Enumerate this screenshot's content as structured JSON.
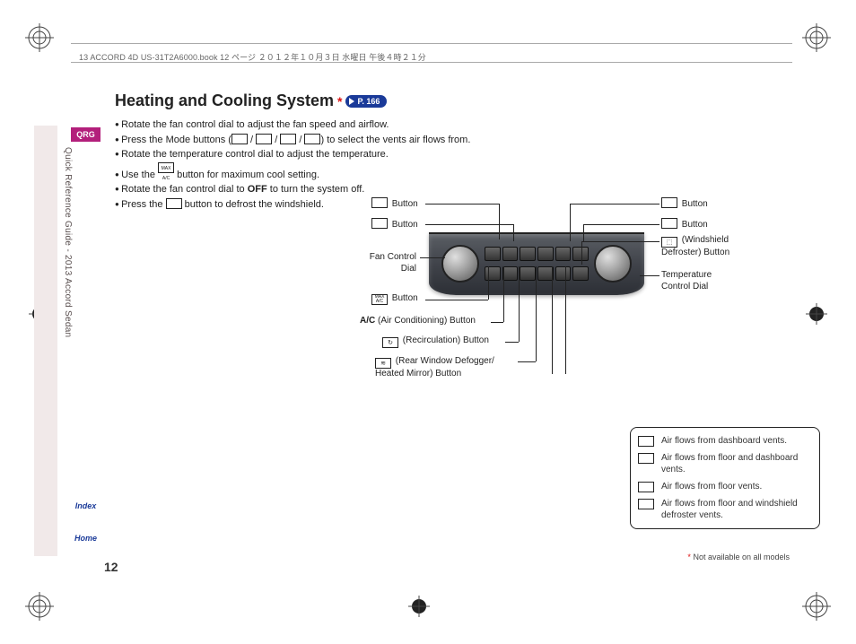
{
  "print_header": "13 ACCORD 4D US-31T2A6000.book  12 ページ  ２０１２年１０月３日  水曜日  午後４時２１分",
  "side_title": "Quick Reference Guide - 2013 Accord Sedan",
  "tabs": {
    "qrg": "QRG",
    "index": "Index",
    "home": "Home"
  },
  "page_number": "12",
  "footnote": {
    "star": "*",
    "text": " Not available on all models"
  },
  "title": {
    "text": "Heating and Cooling System",
    "star": "*",
    "page_ref": "P. 166"
  },
  "bullets": [
    {
      "pre": "Rotate the fan control dial to adjust the fan speed and airflow."
    },
    {
      "pre": "Press the Mode buttons (",
      "icons": 4,
      "post": ") to select the vents air flows from."
    },
    {
      "pre": "Rotate the temperature control dial to adjust the temperature."
    },
    {
      "pre": "Use the ",
      "icons": 1,
      "icon_label": "MAX A/C",
      "post": " button for maximum cool setting."
    },
    {
      "pre": "Rotate the fan control dial to ",
      "bold": "OFF",
      "post": " to turn the system off."
    },
    {
      "pre": "Press the ",
      "icons": 1,
      "post": " button to defrost the windshield."
    }
  ],
  "callouts": {
    "left_top1": "        Button",
    "left_top2": "        Button",
    "fan_dial": "Fan Control\nDial",
    "max_btn": "        Button",
    "ac_btn_bold": "A/C",
    "ac_btn_rest": " (Air Conditioning) Button",
    "recirc_btn": "        (Recirculation) Button",
    "rear_defog": "       (Rear Window Defogger/\nHeated Mirror) Button",
    "right_top1": "        Button",
    "right_top2": "        Button",
    "windshield": "      (Windshield\nDefroster) Button",
    "temp_dial": "Temperature\nControl Dial"
  },
  "legend": [
    "Air flows from dashboard vents.",
    "Air flows from floor and dashboard vents.",
    "Air flows from floor vents.",
    "Air flows from floor and windshield defroster vents."
  ],
  "colors": {
    "accent_pink": "#b31f7b",
    "accent_blue": "#1a3a99",
    "star_red": "#d11"
  }
}
